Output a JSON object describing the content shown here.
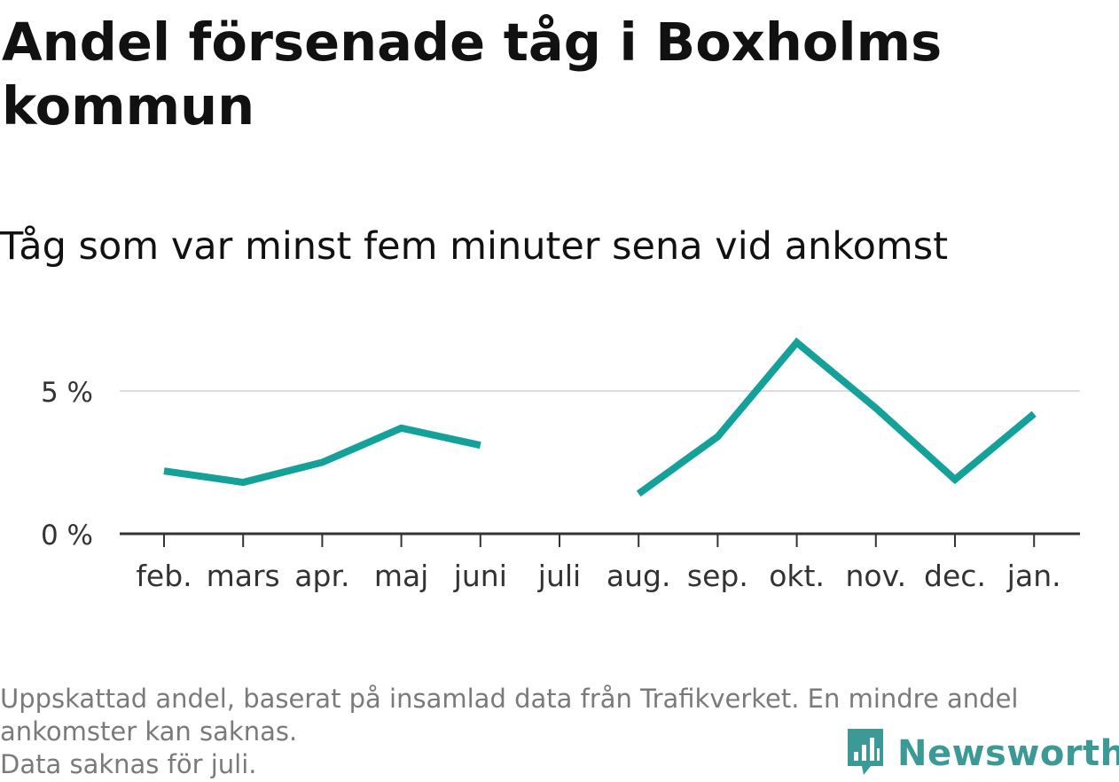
{
  "title": "Andel försenade tåg i Boxholms kommun",
  "subtitle": "Tåg som var minst fem minuter sena vid ankomst",
  "footnote": {
    "line1": "Uppskattad andel, baserat på insamlad data från Trafikverket. En mindre andel",
    "line2": "ankomster kan saknas.",
    "line3": "Data saknas för juli."
  },
  "logo": {
    "text": "Newsworthy",
    "icon": "bar-chart-speech-icon"
  },
  "colors": {
    "line": "#13a19a",
    "grid": "#dddddd",
    "axis": "#333333",
    "logo": "#3c9a96"
  },
  "chart_data": {
    "type": "line",
    "categories": [
      "feb.",
      "mars",
      "apr.",
      "maj",
      "juni",
      "juli",
      "aug.",
      "sep.",
      "okt.",
      "nov.",
      "dec.",
      "jan."
    ],
    "series": [
      {
        "values": [
          2.2,
          1.8,
          2.5,
          3.7,
          3.1,
          null,
          1.4,
          3.4,
          6.7,
          4.4,
          1.9,
          4.2
        ]
      }
    ],
    "yticks": [
      {
        "value": 0,
        "label": "0 %"
      },
      {
        "value": 5,
        "label": "5 %"
      }
    ],
    "ylim": [
      0,
      7
    ],
    "grid": true
  }
}
